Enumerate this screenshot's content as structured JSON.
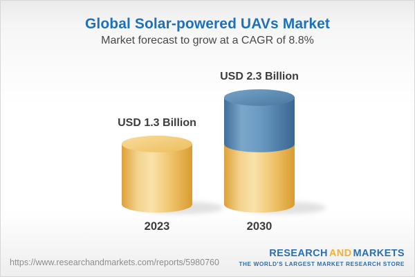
{
  "header": {
    "title": "Global Solar-powered UAVs Market",
    "subtitle": "Market forecast to grow at a CAGR of 8.8%"
  },
  "chart_data": {
    "type": "bar",
    "variant": "3d-cylinder",
    "title": "Global Solar-powered UAVs Market",
    "subtitle": "Market forecast to grow at a CAGR of 8.8%",
    "cagr": "8.8%",
    "unit": "USD Billion",
    "categories": [
      "2023",
      "2030"
    ],
    "values": [
      1.3,
      2.3
    ],
    "value_labels": [
      "USD 1.3 Billion",
      "USD 2.3 Billion"
    ],
    "ylim": [
      0,
      2.5
    ],
    "grid": false,
    "legend": false,
    "bars": [
      {
        "category": "2023",
        "value": 1.3,
        "label": "USD 1.3 Billion",
        "segments": [
          {
            "name": "base",
            "value": 1.3,
            "color": "gold"
          }
        ]
      },
      {
        "category": "2030",
        "value": 2.3,
        "label": "USD 2.3 Billion",
        "segments": [
          {
            "name": "base",
            "value": 1.3,
            "color": "gold"
          },
          {
            "name": "growth",
            "value": 1.0,
            "color": "blue"
          }
        ]
      }
    ],
    "colors": {
      "gold": "#F2C665",
      "blue": "#5D8DB8",
      "label_text": "#3C3C3C",
      "title": "#1E71B8",
      "subtitle": "#474747"
    }
  },
  "footer": {
    "url": "https://www.researchandmarkets.com/reports/5980760",
    "logo": {
      "part1": "RESEARCH",
      "part2": "AND",
      "part3": "MARKETS",
      "tagline": "THE WORLD'S LARGEST MARKET RESEARCH STORE",
      "blue": "#2B6FAC",
      "gold": "#F0B138"
    }
  }
}
